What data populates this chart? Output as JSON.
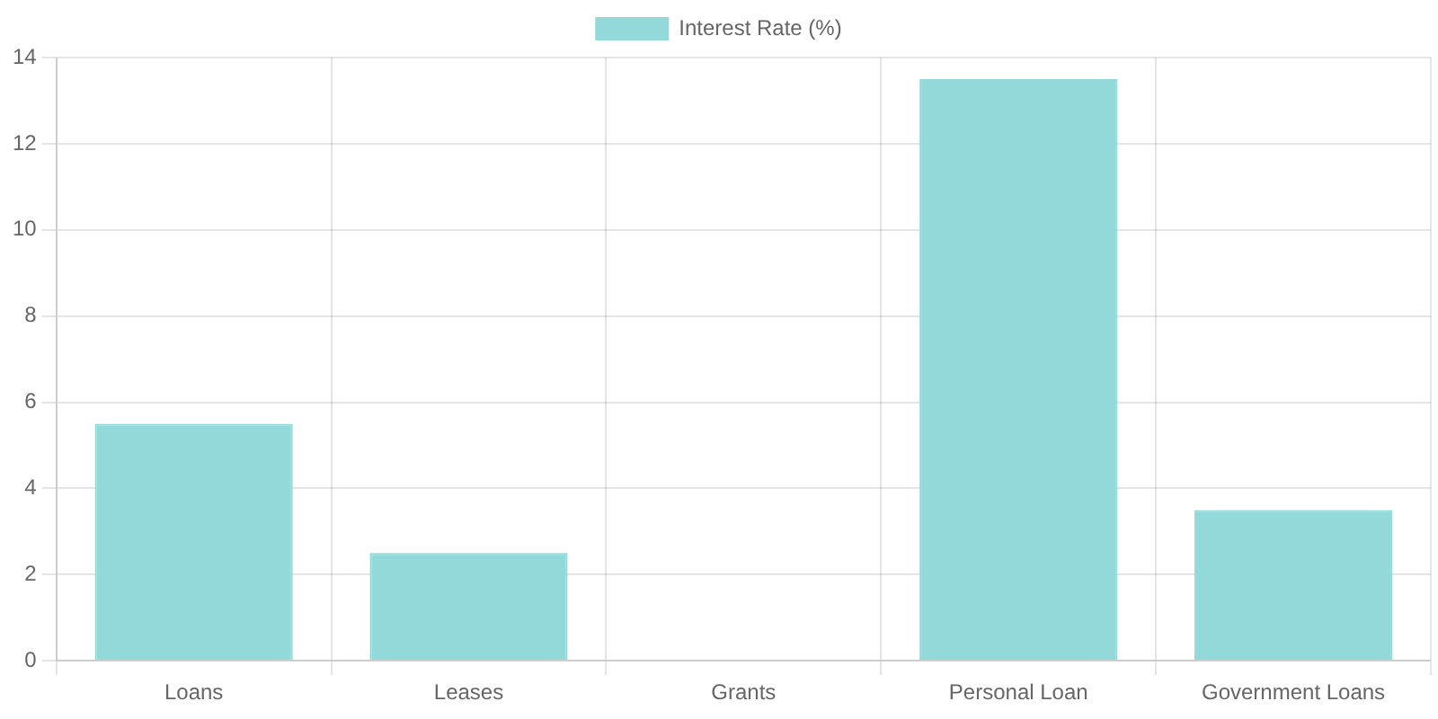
{
  "chart_data": {
    "type": "bar",
    "categories": [
      "Loans",
      "Leases",
      "Grants",
      "Personal Loan",
      "Government Loans"
    ],
    "series": [
      {
        "name": "Interest Rate (%)",
        "color": "#93d9d9",
        "values": [
          5.5,
          2.5,
          0,
          13.5,
          3.5
        ]
      }
    ],
    "ylim": [
      0,
      14
    ],
    "yticks": [
      0,
      2,
      4,
      6,
      8,
      10,
      12,
      14
    ],
    "grid": true,
    "legend": "top"
  }
}
